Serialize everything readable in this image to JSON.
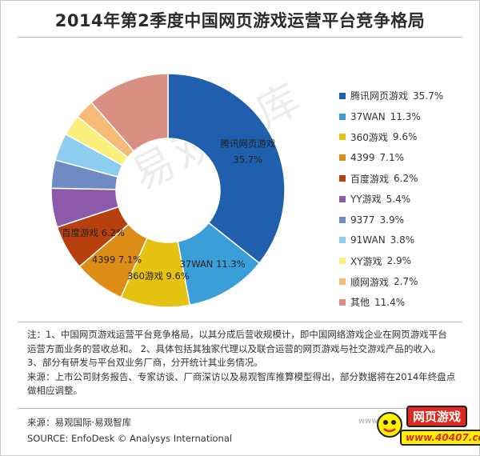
{
  "page": {
    "title": "2014年第2季度中国网页游戏运营平台竞争格局",
    "watermark": "易观智库",
    "notes": [
      "注：1、中国网页游戏运营平台竞争格局，以其分成后营收规模计，即中国网络游戏企业在网页游戏平台运营方面业务的营收总和。 2、具体包括其独家代理以及联合运营的网页游戏与社交游戏产品的收入。 3、部分有研发与平台双业务厂商，分开统计其业务情况。",
      "来源：上市公司财务报告、专家访谈、厂商深访以及易观智库推算模型得出，部分数据将在2014年终盘点做相应调整。"
    ],
    "source_cn": "来源：易观国际·易观智库",
    "source_en": "SOURCE: EnfoDesk © Analysys International",
    "badge": {
      "site_fade": "www",
      "top_text": "网页游戏",
      "bottom_text": "www.40407.com",
      "colors": {
        "red": "#e02a1f",
        "yellow": "#fff200"
      }
    }
  },
  "chart_data": {
    "type": "pie",
    "variant": "donut",
    "title": "2014年第2季度中国网页游戏运营平台竞争格局",
    "value_unit": "%",
    "legend_position": "right",
    "slices": [
      {
        "name": "腾讯网页游戏",
        "value": 35.7,
        "label": "35.7%",
        "color": "#1f5fae"
      },
      {
        "name": "37WAN",
        "value": 11.3,
        "label": "11.3%",
        "color": "#3a9ed8"
      },
      {
        "name": "360游戏",
        "value": 9.6,
        "label": "9.6%",
        "color": "#e6c313"
      },
      {
        "name": "4399",
        "value": 7.1,
        "label": "7.1%",
        "color": "#dd8d15"
      },
      {
        "name": "百度游戏",
        "value": 6.2,
        "label": "6.2%",
        "color": "#b8400f"
      },
      {
        "name": "YY游戏",
        "value": 5.4,
        "label": "5.4%",
        "color": "#8d5aab"
      },
      {
        "name": "9377",
        "value": 3.9,
        "label": "3.9%",
        "color": "#6f8ac4"
      },
      {
        "name": "91WAN",
        "value": 3.8,
        "label": "3.8%",
        "color": "#8ccdf0"
      },
      {
        "name": "XY游戏",
        "value": 2.9,
        "label": "2.9%",
        "color": "#fbf07c"
      },
      {
        "name": "顺网游戏",
        "value": 2.7,
        "label": "2.7%",
        "color": "#f5bb77"
      },
      {
        "name": "其他",
        "value": 11.4,
        "label": "11.4%",
        "color": "#da8f83"
      }
    ],
    "data_labels": [
      {
        "name": "腾讯网页游戏",
        "label": "35.7%"
      },
      {
        "name": "37WAN",
        "label": "11.3%"
      },
      {
        "name": "360游戏",
        "label": "9.6%"
      },
      {
        "name": "4399",
        "label": "7.1%"
      },
      {
        "name": "百度游戏",
        "label": "6.2%"
      }
    ]
  }
}
